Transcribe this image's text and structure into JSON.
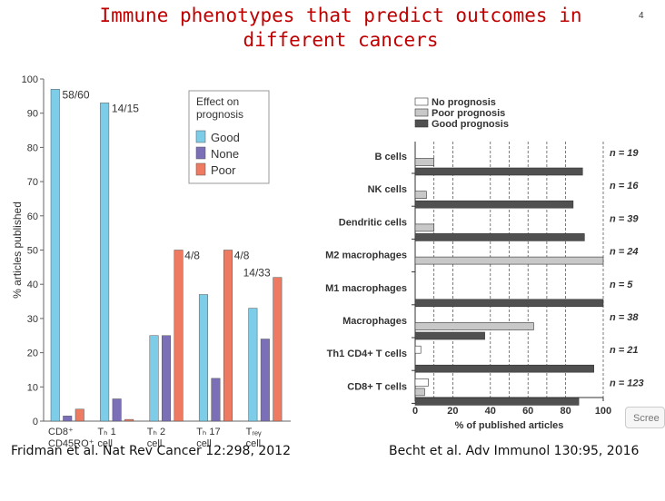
{
  "slide": {
    "title_line1": "Immune phenotypes that predict outcomes in",
    "title_line2": "different cancers",
    "slide_number": "4",
    "citation_left": "Fridman et al. Nat Rev Cancer 12:298, 2012",
    "citation_right": "Becht et al. Adv Immunol 130:95, 2016",
    "screen_button_label": "Scree"
  },
  "chart_data": [
    {
      "type": "bar",
      "ylabel": "% articles published",
      "ylim": [
        0,
        100
      ],
      "yticks": [
        0,
        10,
        20,
        30,
        40,
        50,
        60,
        70,
        80,
        90,
        100
      ],
      "categories": [
        "CD8+ CD45RO+",
        "TH1 cell",
        "TH2 cell",
        "TH17 cell",
        "TReg cell"
      ],
      "category_lines": [
        [
          "CD8⁺",
          "CD45RO⁺"
        ],
        [
          "Tₕ 1",
          "cell"
        ],
        [
          "Tₕ 2",
          "cell"
        ],
        [
          "Tₕ 17",
          "cell"
        ],
        [
          "Tᵣₑᵧ",
          "cell"
        ]
      ],
      "legend": {
        "title_line1": "Effect on",
        "title_line2": "prognosis",
        "placement": "top-right"
      },
      "series": [
        {
          "name": "Good",
          "color": "#7dcde8",
          "values": [
            97,
            93,
            25,
            37,
            33
          ]
        },
        {
          "name": "None",
          "color": "#7b6fb8",
          "values": [
            1.5,
            6.5,
            25,
            12.5,
            24
          ]
        },
        {
          "name": "Poor",
          "color": "#ef7a62",
          "values": [
            3.5,
            0.5,
            50,
            50,
            42
          ]
        }
      ],
      "annotations": [
        "58/60",
        "14/15",
        "4/8",
        "4/8",
        "14/33"
      ]
    },
    {
      "type": "bar",
      "orientation": "horizontal",
      "xlabel": "% of published articles",
      "xlim": [
        0,
        100
      ],
      "xticks": [
        0,
        20,
        40,
        60,
        80,
        100
      ],
      "categories": [
        "B cells",
        "NK cells",
        "Dendritic cells",
        "M2 macrophages",
        "M1 macrophages",
        "Macrophages",
        "Th1 CD4+ T cells",
        "CD8+ T cells"
      ],
      "counts": [
        "n = 19",
        "n = 16",
        "n = 39",
        "n = 24",
        "n = 5",
        "n = 38",
        "n = 21",
        "n = 123"
      ],
      "legend": {
        "placement": "top-left"
      },
      "series": [
        {
          "name": "No prognosis",
          "color": "#ffffff",
          "values": [
            0,
            0,
            0,
            0,
            0,
            0,
            3,
            7
          ]
        },
        {
          "name": "Poor prognosis",
          "color": "#c8c8c8",
          "values": [
            10,
            6,
            10,
            100,
            0,
            63,
            0,
            5
          ]
        },
        {
          "name": "Good prognosis",
          "color": "#505050",
          "values": [
            89,
            84,
            90,
            0,
            100,
            37,
            95,
            87
          ]
        }
      ]
    }
  ]
}
